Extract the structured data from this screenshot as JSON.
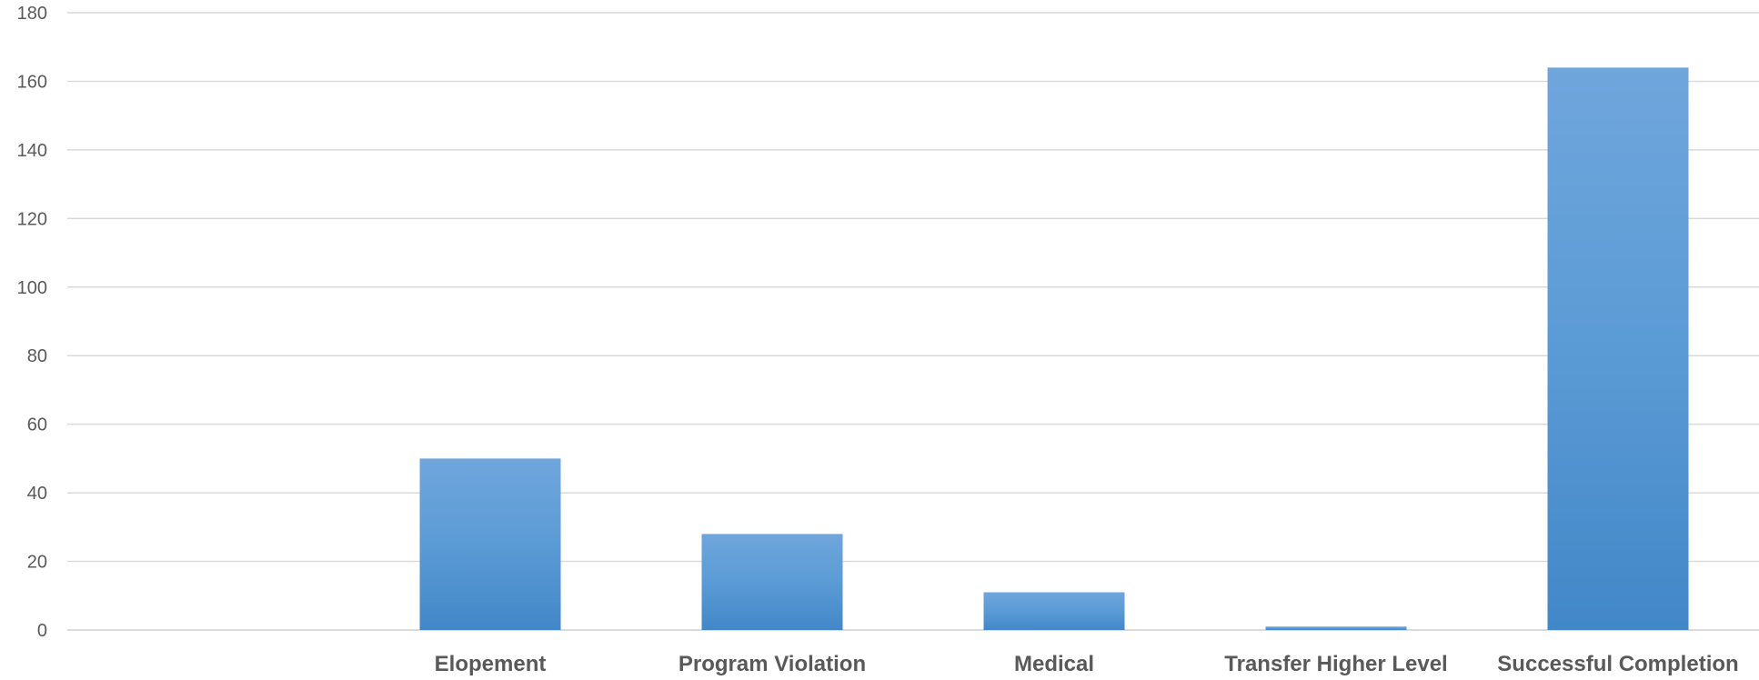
{
  "chart_data": {
    "type": "bar",
    "title": "",
    "xlabel": "",
    "ylabel": "",
    "categories": [
      "",
      "Elopement",
      "Program Violation",
      "Medical",
      "Transfer Higher Level",
      "Successful Completion"
    ],
    "values": [
      0,
      50,
      28,
      11,
      1,
      164
    ],
    "ylim": [
      0,
      180
    ],
    "yticks": [
      "0",
      "20",
      "40",
      "60",
      "80",
      "100",
      "120",
      "140",
      "160",
      "180"
    ],
    "grid": true,
    "legend": "none",
    "colors": {
      "bar_top": "#6fa6dc",
      "bar_mid": "#5b9bd5",
      "bar_bottom": "#4287c8",
      "gridline": "#d9d9d9",
      "text": "#595959"
    }
  }
}
